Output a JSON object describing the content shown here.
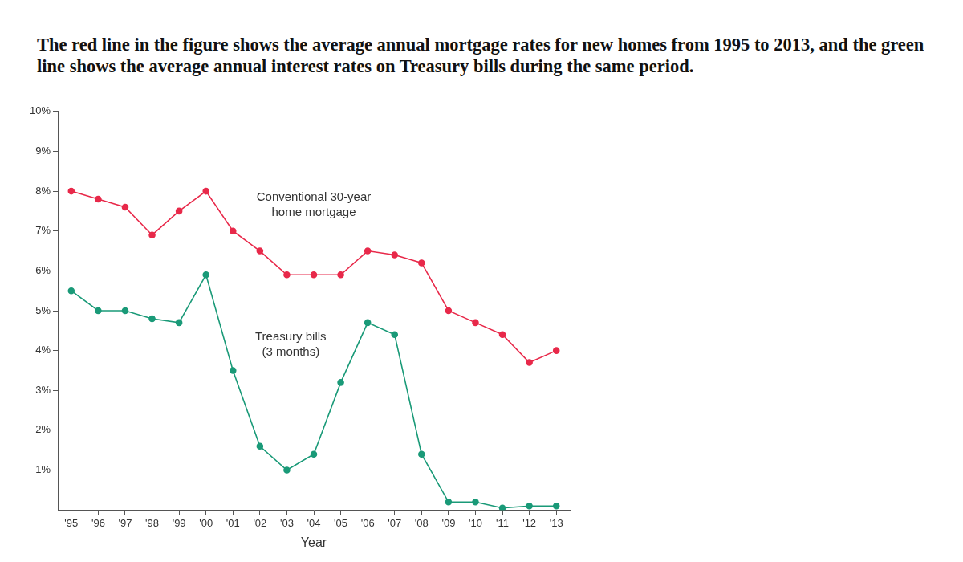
{
  "chart_data": {
    "type": "line",
    "title": "The red line in the figure shows the average annual mortgage rates for new homes from 1995 to 2013, and the green line shows the average annual interest rates on Treasury bills during the same period.",
    "x_label": "Year",
    "categories": [
      "'95",
      "'96",
      "'97",
      "'98",
      "'99",
      "'00",
      "'01",
      "'02",
      "'03",
      "'04",
      "'05",
      "'06",
      "'07",
      "'08",
      "'09",
      "'10",
      "'11",
      "'12",
      "'13"
    ],
    "series": [
      {
        "name": "Conventional 30-year home mortgage",
        "color": "#e8294a",
        "marker": "circle",
        "line_style": "solid",
        "values": [
          8.0,
          7.8,
          7.6,
          6.9,
          7.5,
          8.0,
          7.0,
          6.5,
          5.9,
          5.9,
          5.9,
          6.5,
          6.4,
          6.2,
          5.0,
          4.7,
          4.4,
          3.7,
          4.0
        ]
      },
      {
        "name": "Treasury bills (3 months)",
        "color": "#1a9a78",
        "marker": "circle",
        "line_style": "solid",
        "values": [
          5.5,
          5.0,
          5.0,
          4.8,
          4.7,
          5.9,
          3.5,
          1.6,
          1.0,
          1.4,
          3.2,
          4.7,
          4.4,
          1.4,
          0.2,
          0.2,
          0.05,
          0.1,
          0.1
        ]
      }
    ],
    "ylim": [
      0,
      10
    ],
    "yticks": [
      {
        "value": 1,
        "label": "1%"
      },
      {
        "value": 2,
        "label": "2%"
      },
      {
        "value": 3,
        "label": "3%"
      },
      {
        "value": 4,
        "label": "4%"
      },
      {
        "value": 5,
        "label": "5%"
      },
      {
        "value": 6,
        "label": "6%"
      },
      {
        "value": 7,
        "label": "7%"
      },
      {
        "value": 8,
        "label": "8%"
      },
      {
        "value": 9,
        "label": "9%"
      },
      {
        "value": 10,
        "label": "10%"
      }
    ],
    "grid": false
  }
}
